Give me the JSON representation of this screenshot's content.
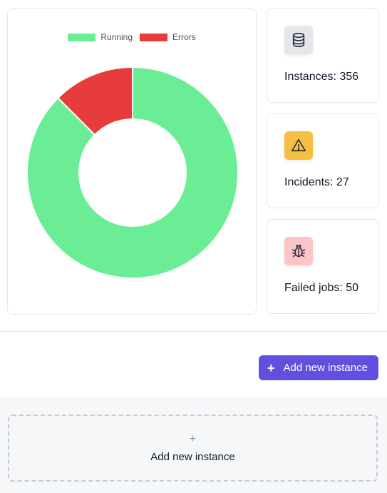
{
  "chart_data": {
    "type": "doughnut",
    "series": [
      {
        "name": "Running",
        "value": 329,
        "color": "#6aed95"
      },
      {
        "name": "Errors",
        "value": 47,
        "color": "#e83b3b"
      }
    ],
    "legend_position": "top"
  },
  "stats": [
    {
      "label": "Instances: 356",
      "icon": "database-icon",
      "icon_bg": "#e5e7eb"
    },
    {
      "label": "Incidents: 27",
      "icon": "warning-icon",
      "icon_bg": "#f5c042"
    },
    {
      "label": "Failed jobs: 50",
      "icon": "bug-icon",
      "icon_bg": "#fcc5c5"
    }
  ],
  "actions": {
    "add_instance_button": "Add new instance",
    "add_instance_plus": "+",
    "add_instance_placeholder": "Add new instance",
    "placeholder_plus": "+"
  },
  "colors": {
    "accent": "#5f50e0"
  }
}
